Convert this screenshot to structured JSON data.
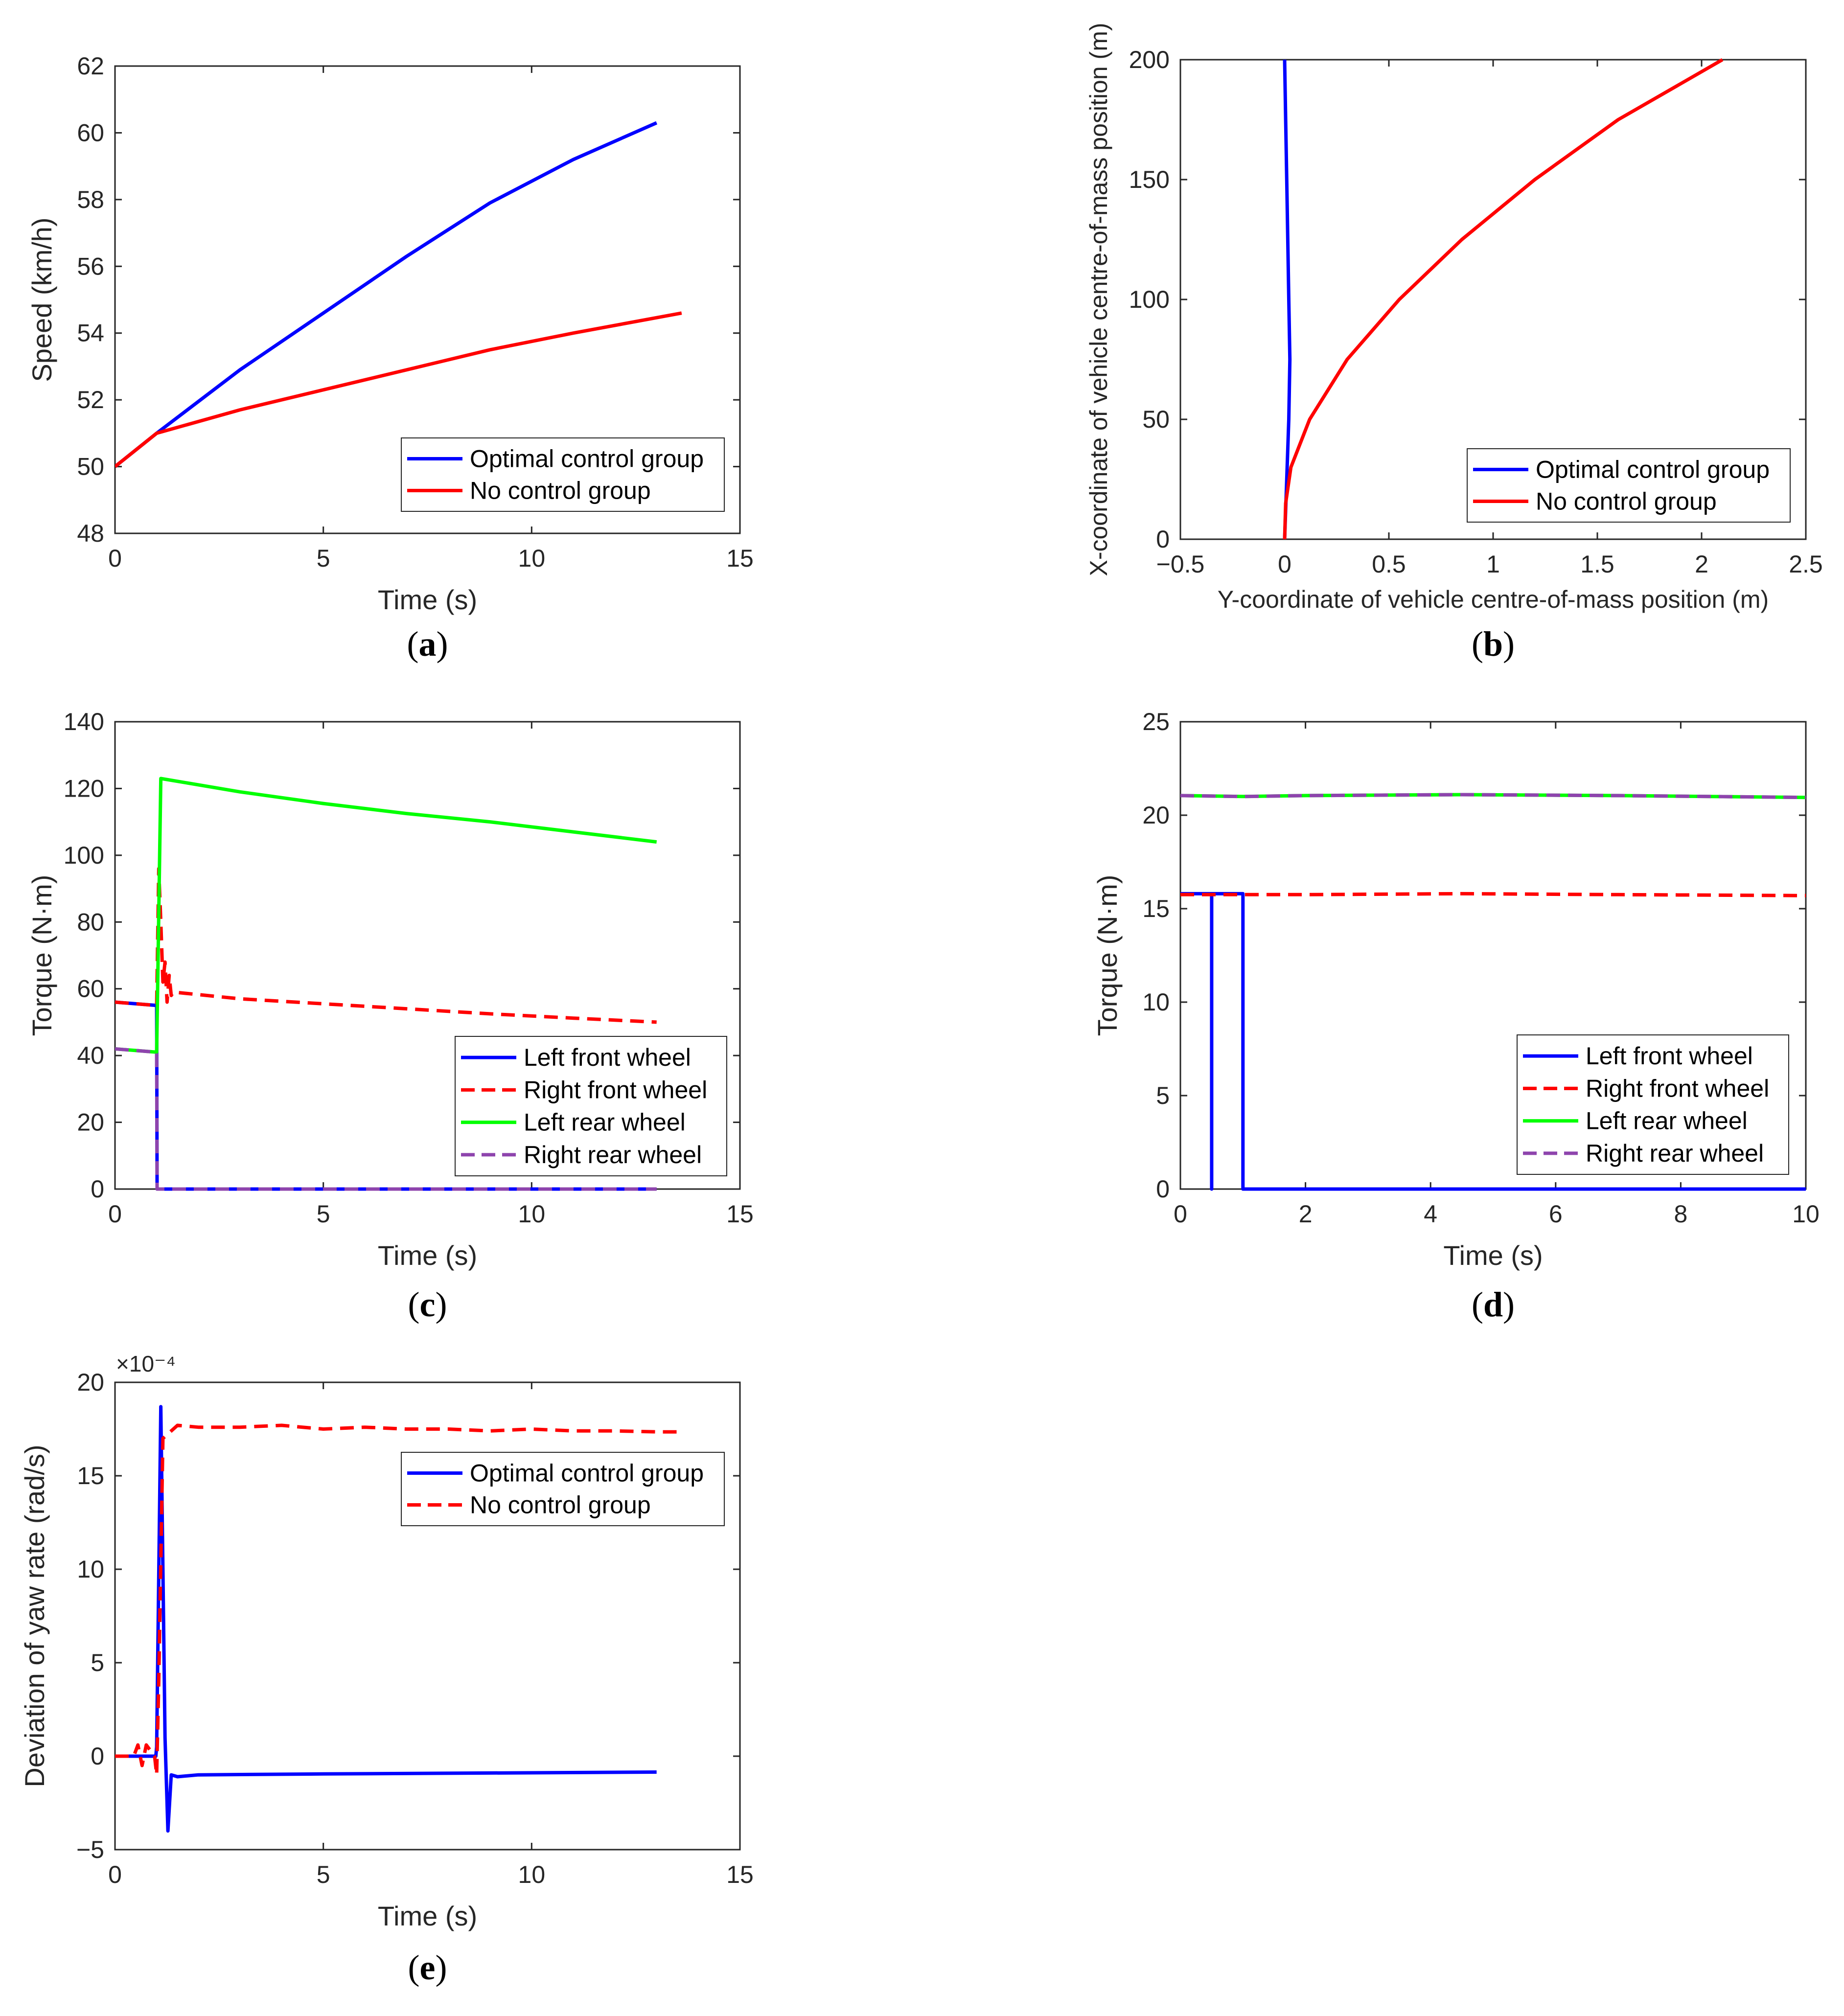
{
  "chart_data": [
    {
      "id": "a",
      "type": "line",
      "caption_letter": "a",
      "xlabel": "Time (s)",
      "ylabel": "Speed (km/h)",
      "xlim": [
        0,
        15
      ],
      "ylim": [
        48,
        62
      ],
      "xticks": [
        0,
        5,
        10,
        15
      ],
      "yticks": [
        48,
        50,
        52,
        54,
        56,
        58,
        60,
        62
      ],
      "legend": {
        "placement": "bottom-right"
      },
      "series": [
        {
          "name": "Optimal control group",
          "color": "#0000ff",
          "style": "solid",
          "x": [
            0,
            1,
            3,
            5,
            7,
            9,
            11,
            13
          ],
          "y": [
            50.0,
            51.0,
            52.9,
            54.6,
            56.3,
            57.9,
            59.2,
            60.3
          ]
        },
        {
          "name": "No control group",
          "color": "#ff0000",
          "style": "solid",
          "x": [
            0,
            1,
            3,
            5,
            7,
            9,
            11,
            13.6
          ],
          "y": [
            50.0,
            51.0,
            51.7,
            52.3,
            52.9,
            53.5,
            54.0,
            54.6
          ]
        }
      ]
    },
    {
      "id": "b",
      "type": "line",
      "caption_letter": "b",
      "xlabel": "Y-coordinate of vehicle centre-of-mass position (m)",
      "ylabel": "X-coordinate of vehicle centre-of-mass position (m)",
      "xlim": [
        -0.5,
        2.5
      ],
      "ylim": [
        0,
        200
      ],
      "xticks": [
        -0.5,
        0,
        0.5,
        1,
        1.5,
        2,
        2.5
      ],
      "yticks": [
        0,
        50,
        100,
        150,
        200
      ],
      "legend": {
        "placement": "bottom-right"
      },
      "series": [
        {
          "name": "Optimal control group",
          "color": "#0000ff",
          "style": "solid",
          "x": [
            0,
            0.01,
            0.02,
            0.025,
            0.02,
            0.015,
            0.01,
            0.005,
            0.0
          ],
          "y": [
            0,
            25,
            50,
            75,
            100,
            125,
            150,
            175,
            200
          ]
        },
        {
          "name": "No control group",
          "color": "#ff0000",
          "style": "solid",
          "x": [
            0,
            0.005,
            0.03,
            0.12,
            0.3,
            0.55,
            0.85,
            1.2,
            1.6,
            2.1
          ],
          "y": [
            0,
            15,
            30,
            50,
            75,
            100,
            125,
            150,
            175,
            200
          ]
        }
      ]
    },
    {
      "id": "c",
      "type": "line",
      "caption_letter": "c",
      "xlabel": "Time (s)",
      "ylabel": "Torque (N·m)",
      "xlim": [
        0,
        15
      ],
      "ylim": [
        0,
        140
      ],
      "xticks": [
        0,
        5,
        10,
        15
      ],
      "yticks": [
        0,
        20,
        40,
        60,
        80,
        100,
        120,
        140
      ],
      "legend": {
        "placement": "bottom-right"
      },
      "series": [
        {
          "name": "Left front wheel",
          "color": "#0000ff",
          "style": "solid",
          "x": [
            0,
            1.0,
            1.01,
            13
          ],
          "y": [
            56,
            55,
            0,
            0
          ]
        },
        {
          "name": "Right front wheel",
          "color": "#ff0000",
          "style": "dashed",
          "x": [
            0,
            1.0,
            1.05,
            1.1,
            1.15,
            1.2,
            1.25,
            1.3,
            1.35,
            1.4,
            3,
            5,
            7,
            9,
            11,
            13
          ],
          "y": [
            56,
            55,
            96,
            80,
            62,
            68,
            56,
            64,
            58,
            59,
            57,
            55.5,
            54,
            52.5,
            51.2,
            50
          ]
        },
        {
          "name": "Left rear wheel",
          "color": "#00ff00",
          "style": "solid",
          "x": [
            0,
            1.0,
            1.1,
            3,
            5,
            7,
            9,
            11,
            13
          ],
          "y": [
            42,
            41,
            123,
            119,
            115.5,
            112.5,
            110,
            107,
            104
          ]
        },
        {
          "name": "Right rear wheel",
          "color": "#8e44ad",
          "style": "dashed",
          "x": [
            0,
            1.0,
            1.01,
            13
          ],
          "y": [
            42,
            41,
            0,
            0
          ]
        }
      ]
    },
    {
      "id": "d",
      "type": "line",
      "caption_letter": "d",
      "xlabel": "Time (s)",
      "ylabel": "Torque (N·m)",
      "xlim": [
        0,
        10
      ],
      "ylim": [
        0,
        25
      ],
      "xticks": [
        0,
        2,
        4,
        6,
        8,
        10
      ],
      "yticks": [
        0,
        5,
        10,
        15,
        20,
        25
      ],
      "legend": {
        "placement": "bottom-right"
      },
      "series": [
        {
          "name": "Left front wheel",
          "color": "#0000ff",
          "style": "solid",
          "x": [
            0,
            0.5,
            0.5,
            0.5,
            1.0,
            1.0,
            10
          ],
          "y": [
            15.8,
            15.8,
            0,
            15.8,
            15.8,
            0,
            0
          ]
        },
        {
          "name": "Right front wheel",
          "color": "#ff0000",
          "style": "dashed",
          "x": [
            0,
            2,
            4.5,
            7,
            10
          ],
          "y": [
            15.75,
            15.75,
            15.8,
            15.75,
            15.7
          ]
        },
        {
          "name": "Left rear wheel",
          "color": "#00ff00",
          "style": "solid",
          "x": [
            0,
            1,
            2,
            4.5,
            7,
            10
          ],
          "y": [
            21.05,
            21.0,
            21.05,
            21.1,
            21.05,
            20.95
          ]
        },
        {
          "name": "Right rear wheel",
          "color": "#8e44ad",
          "style": "dashed",
          "x": [
            0,
            1,
            2,
            4.5,
            7,
            10
          ],
          "y": [
            21.05,
            21.0,
            21.05,
            21.1,
            21.05,
            20.95
          ]
        }
      ]
    },
    {
      "id": "e",
      "type": "line",
      "caption_letter": "e",
      "xlabel": "Time (s)",
      "ylabel": "Deviation of yaw rate (rad/s)",
      "exponent_label": "×10⁻⁴",
      "xlim": [
        0,
        15
      ],
      "ylim": [
        -5,
        20
      ],
      "xticks": [
        0,
        5,
        10,
        15
      ],
      "yticks": [
        -5,
        0,
        5,
        10,
        15,
        20
      ],
      "legend": {
        "placement": "top-right"
      },
      "series": [
        {
          "name": "Optimal control group",
          "color": "#0000ff",
          "style": "solid",
          "x": [
            0,
            0.98,
            1.0,
            1.1,
            1.15,
            1.2,
            1.27,
            1.35,
            1.5,
            2.0,
            5,
            9,
            13
          ],
          "y": [
            0,
            0,
            0.5,
            18.7,
            10,
            1,
            -4,
            -1,
            -1.1,
            -1,
            -0.95,
            -0.9,
            -0.85
          ]
        },
        {
          "name": "No control group",
          "color": "#ff0000",
          "style": "dashed",
          "x": [
            0,
            0.45,
            0.55,
            0.65,
            0.75,
            0.95,
            1.0,
            1.05,
            1.15,
            1.3,
            1.5,
            2,
            3,
            4,
            5,
            6,
            7,
            8,
            9,
            10,
            11,
            12,
            13,
            13.6
          ],
          "y": [
            0,
            0,
            0.6,
            -0.5,
            0.6,
            0,
            -1,
            4,
            17,
            17.3,
            17.7,
            17.6,
            17.6,
            17.7,
            17.5,
            17.6,
            17.5,
            17.5,
            17.4,
            17.5,
            17.4,
            17.4,
            17.35,
            17.35
          ]
        }
      ]
    }
  ]
}
